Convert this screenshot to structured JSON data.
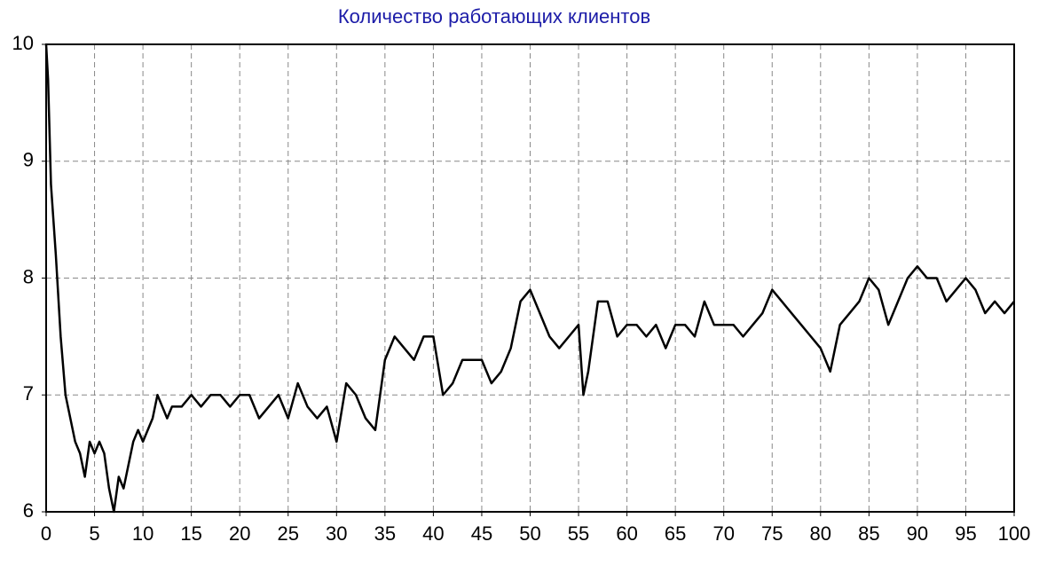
{
  "chart_data": {
    "type": "line",
    "title": "Количество работающих клиентов",
    "x": [
      0,
      0.2,
      0.5,
      1,
      1.5,
      2,
      2.5,
      3,
      3.5,
      4,
      4.5,
      5,
      5.5,
      6,
      6.5,
      7,
      7.5,
      8,
      8.5,
      9,
      9.5,
      10,
      10.5,
      11,
      11.5,
      12,
      12.5,
      13,
      14,
      15,
      16,
      17,
      18,
      19,
      20,
      21,
      22,
      23,
      24,
      25,
      26,
      27,
      28,
      29,
      30,
      31,
      32,
      33,
      34,
      35,
      36,
      37,
      38,
      39,
      40,
      41,
      42,
      43,
      44,
      45,
      46,
      47,
      48,
      49,
      50,
      51,
      52,
      53,
      54,
      55,
      55.5,
      56,
      57,
      58,
      59,
      60,
      61,
      62,
      63,
      64,
      65,
      66,
      67,
      68,
      69,
      70,
      71,
      72,
      73,
      74,
      75,
      76,
      77,
      78,
      79,
      80,
      81,
      82,
      83,
      84,
      85,
      86,
      87,
      88,
      89,
      90,
      91,
      92,
      93,
      94,
      95,
      96,
      97,
      98,
      99,
      100
    ],
    "series": [
      {
        "color": "#000000",
        "values": [
          10,
          9.7,
          8.8,
          8.2,
          7.5,
          7.0,
          6.8,
          6.6,
          6.5,
          6.3,
          6.6,
          6.5,
          6.6,
          6.5,
          6.2,
          6.0,
          6.3,
          6.2,
          6.4,
          6.6,
          6.7,
          6.6,
          6.7,
          6.8,
          7.0,
          6.9,
          6.8,
          6.9,
          6.9,
          7.0,
          6.9,
          7.0,
          7.0,
          6.9,
          7.0,
          7.0,
          6.8,
          6.9,
          7.0,
          6.8,
          7.1,
          6.9,
          6.8,
          6.9,
          6.6,
          7.1,
          7.0,
          6.8,
          6.7,
          7.3,
          7.5,
          7.4,
          7.3,
          7.5,
          7.5,
          7.0,
          7.1,
          7.3,
          7.3,
          7.3,
          7.1,
          7.2,
          7.4,
          7.8,
          7.9,
          7.7,
          7.5,
          7.4,
          7.5,
          7.6,
          7.0,
          7.2,
          7.8,
          7.8,
          7.5,
          7.6,
          7.6,
          7.5,
          7.6,
          7.4,
          7.6,
          7.6,
          7.5,
          7.8,
          7.6,
          7.6,
          7.6,
          7.5,
          7.6,
          7.7,
          7.9,
          7.8,
          7.7,
          7.6,
          7.5,
          7.4,
          7.2,
          7.6,
          7.7,
          7.8,
          8.0,
          7.9,
          7.6,
          7.8,
          8.0,
          8.1,
          8.0,
          8.0,
          7.8,
          7.9,
          8.0,
          7.9,
          7.7,
          7.8,
          7.7,
          7.8
        ]
      }
    ],
    "xlim": [
      0,
      100
    ],
    "xticks": [
      0,
      5,
      10,
      15,
      20,
      25,
      30,
      35,
      40,
      45,
      50,
      55,
      60,
      65,
      70,
      75,
      80,
      85,
      90,
      95,
      100
    ],
    "ylim": [
      6,
      10
    ],
    "yticks": [
      6,
      7,
      8,
      9,
      10
    ],
    "grid": true,
    "title_color": "#1c1ca8"
  }
}
